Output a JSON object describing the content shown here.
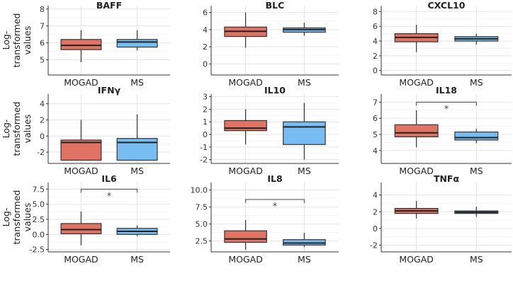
{
  "chart_data": {
    "type": "box",
    "ylabel": "Log-transformed values",
    "groups": [
      "MOGAD",
      "MS"
    ],
    "colors": {
      "MOGAD": "#e07363",
      "MS": "#78bdf2"
    },
    "panels": [
      {
        "title": "BAFF",
        "ylim": [
          4.1,
          8.2
        ],
        "ticks": [
          5,
          6,
          7,
          8
        ],
        "boxes": [
          {
            "q1": 5.6,
            "med": 5.85,
            "q3": 6.2,
            "lo": 4.85,
            "hi": 6.75
          },
          {
            "q1": 5.75,
            "med": 6.05,
            "q3": 6.2,
            "lo": 5.55,
            "hi": 6.75
          }
        ],
        "sig": null
      },
      {
        "title": "BLC",
        "ylim": [
          -1.3,
          6.8
        ],
        "ticks": [
          0,
          2,
          4,
          6
        ],
        "boxes": [
          {
            "q1": 3.2,
            "med": 3.8,
            "q3": 4.3,
            "lo": 1.9,
            "hi": 6.0
          },
          {
            "q1": 3.7,
            "med": 4.0,
            "q3": 4.2,
            "lo": 3.3,
            "hi": 4.8
          }
        ],
        "sig": null
      },
      {
        "title": "CXCL10",
        "ylim": [
          -0.6,
          8.8
        ],
        "ticks": [
          0,
          2,
          4,
          6,
          8
        ],
        "boxes": [
          {
            "q1": 3.9,
            "med": 4.5,
            "q3": 5.0,
            "lo": 2.5,
            "hi": 6.2
          },
          {
            "q1": 4.0,
            "med": 4.3,
            "q3": 4.6,
            "lo": 3.5,
            "hi": 5.0
          }
        ],
        "sig": null
      },
      {
        "title": "IFNγ",
        "ylim": [
          -3.4,
          5.2
        ],
        "ticks": [
          -2,
          0,
          2,
          4
        ],
        "boxes": [
          {
            "q1": -3.0,
            "med": -0.8,
            "q3": -0.5,
            "lo": -3.0,
            "hi": 2.0
          },
          {
            "q1": -3.0,
            "med": -0.8,
            "q3": -0.3,
            "lo": -3.0,
            "hi": 2.7
          }
        ],
        "sig": null
      },
      {
        "title": "IL10",
        "ylim": [
          -2.3,
          3.2
        ],
        "ticks": [
          -2,
          -1,
          0,
          1,
          2,
          3
        ],
        "boxes": [
          {
            "q1": 0.3,
            "med": 0.5,
            "q3": 1.1,
            "lo": -0.8,
            "hi": 2.0
          },
          {
            "q1": -0.8,
            "med": 0.6,
            "q3": 1.0,
            "lo": -2.0,
            "hi": 2.5
          }
        ],
        "sig": null
      },
      {
        "title": "IL18",
        "ylim": [
          3.2,
          7.5
        ],
        "ticks": [
          4,
          5,
          6,
          7
        ],
        "boxes": [
          {
            "q1": 4.85,
            "med": 5.1,
            "q3": 5.6,
            "lo": 4.2,
            "hi": 6.5
          },
          {
            "q1": 4.65,
            "med": 4.8,
            "q3": 5.15,
            "lo": 4.45,
            "hi": 5.35
          }
        ],
        "sig": {
          "y": 7.0,
          "label": "*"
        }
      },
      {
        "title": "IL6",
        "ylim": [
          -2.9,
          8.6
        ],
        "ticks": [
          -2.5,
          0.0,
          2.5,
          5.0,
          7.5
        ],
        "tick_labels": [
          "-2.5",
          "0.0",
          "2.5",
          "5.0",
          "7.5"
        ],
        "boxes": [
          {
            "q1": 0.1,
            "med": 0.8,
            "q3": 1.8,
            "lo": -1.8,
            "hi": 3.8
          },
          {
            "q1": 0.0,
            "med": 0.5,
            "q3": 1.0,
            "lo": -0.3,
            "hi": 1.5
          }
        ],
        "sig": {
          "y": 7.5,
          "label": "*"
        }
      },
      {
        "title": "IL8",
        "ylim": [
          0.9,
          11.1
        ],
        "ticks": [
          2.5,
          5.0,
          7.5,
          10.0
        ],
        "tick_labels": [
          "2.5",
          "5.0",
          "7.5",
          "10.0"
        ],
        "boxes": [
          {
            "q1": 2.3,
            "med": 2.8,
            "q3": 4.0,
            "lo": 1.2,
            "hi": 5.6
          },
          {
            "q1": 1.9,
            "med": 2.2,
            "q3": 2.7,
            "lo": 1.6,
            "hi": 3.7
          }
        ],
        "sig": {
          "y": 8.6,
          "label": "*"
        }
      },
      {
        "title": "TNFα",
        "ylim": [
          -2.8,
          5.5
        ],
        "ticks": [
          -2,
          0,
          2,
          4
        ],
        "boxes": [
          {
            "q1": 1.8,
            "med": 2.1,
            "q3": 2.4,
            "lo": 1.2,
            "hi": 3.3
          },
          {
            "q1": 1.8,
            "med": 1.95,
            "q3": 2.1,
            "lo": 1.4,
            "hi": 2.6
          }
        ],
        "sig": null
      }
    ]
  }
}
